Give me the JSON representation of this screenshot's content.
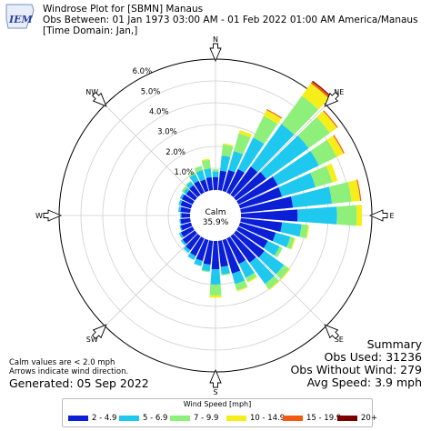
{
  "header": {
    "line1": "Windrose Plot for [SBMN] Manaus",
    "line2": "Obs Between: 01 Jan 1973 03:00 AM - 01 Feb 2022 01:00 AM America/Manaus",
    "line3": "[Time Domain: Jan,]",
    "logo_text": "IEM"
  },
  "notes": {
    "calm_note": "Calm values are < 2.0 mph",
    "arrow_note": "Arrows indicate wind direction.",
    "generated": "Generated: 05 Sep 2022"
  },
  "summary": {
    "title": "Summary",
    "obs_used": "Obs Used: 31236",
    "obs_without_wind": "Obs Without Wind: 279",
    "avg_speed": "Avg Speed: 3.9 mph"
  },
  "chart_data": {
    "type": "windrose",
    "title": "Windrose Plot for [SBMN] Manaus",
    "calm_label": "Calm",
    "calm_value": "35.9%",
    "radial_max": 6.0,
    "radial_ticks": [
      1.0,
      2.0,
      3.0,
      4.0,
      5.0,
      6.0
    ],
    "radial_tick_labels": [
      "1.0%",
      "2.0%",
      "3.0%",
      "4.0%",
      "5.0%",
      "6.0%"
    ],
    "direction_labels": [
      {
        "label": "N",
        "deg": 0
      },
      {
        "label": "NE",
        "deg": 45
      },
      {
        "label": "E",
        "deg": 90
      },
      {
        "label": "SE",
        "deg": 135
      },
      {
        "label": "S",
        "deg": 180
      },
      {
        "label": "SW",
        "deg": 225
      },
      {
        "label": "W",
        "deg": 270
      },
      {
        "label": "NW",
        "deg": 315
      }
    ],
    "legend_title": "Wind Speed [mph]",
    "bins": [
      {
        "label": "2 - 4.9",
        "color": "#0a1fd6"
      },
      {
        "label": "5 - 6.9",
        "color": "#1ec8ee"
      },
      {
        "label": "7 - 9.9",
        "color": "#8ef07a"
      },
      {
        "label": "10 - 14.9",
        "color": "#f6ee1a"
      },
      {
        "label": "15 - 19.9",
        "color": "#f05a12"
      },
      {
        "label": "20+",
        "color": "#7a0000"
      }
    ],
    "directions_deg": [
      0,
      10,
      20,
      30,
      40,
      50,
      60,
      70,
      80,
      90,
      100,
      110,
      120,
      130,
      140,
      150,
      160,
      170,
      180,
      190,
      200,
      210,
      220,
      230,
      240,
      250,
      260,
      270,
      280,
      290,
      300,
      310,
      320,
      330,
      340,
      350
    ],
    "values": [
      [
        0.6,
        0.25,
        0.1,
        0.0,
        0.0,
        0.0
      ],
      [
        0.9,
        0.7,
        0.5,
        0.05,
        0.0,
        0.0
      ],
      [
        1.0,
        0.9,
        0.85,
        0.15,
        0.0,
        0.0
      ],
      [
        1.2,
        1.6,
        1.1,
        0.3,
        0.05,
        0.0
      ],
      [
        1.6,
        2.4,
        1.6,
        0.7,
        0.1,
        0.05
      ],
      [
        1.7,
        2.4,
        1.2,
        0.4,
        0.05,
        0.0
      ],
      [
        2.0,
        2.1,
        0.9,
        0.35,
        0.05,
        0.0
      ],
      [
        2.0,
        1.6,
        0.8,
        0.25,
        0.0,
        0.0
      ],
      [
        2.4,
        1.8,
        0.9,
        0.4,
        0.05,
        0.0
      ],
      [
        2.6,
        1.8,
        0.9,
        0.25,
        0.0,
        0.0
      ],
      [
        1.9,
        0.9,
        0.3,
        0.05,
        0.0,
        0.0
      ],
      [
        1.7,
        0.7,
        0.2,
        0.05,
        0.0,
        0.0
      ],
      [
        1.5,
        0.6,
        0.15,
        0.0,
        0.0,
        0.0
      ],
      [
        1.6,
        1.1,
        0.3,
        0.05,
        0.0,
        0.0
      ],
      [
        1.5,
        1.2,
        0.3,
        0.05,
        0.0,
        0.0
      ],
      [
        1.3,
        0.7,
        0.2,
        0.05,
        0.0,
        0.0
      ],
      [
        1.6,
        0.5,
        0.3,
        0.05,
        0.0,
        0.0
      ],
      [
        1.2,
        0.35,
        0.05,
        0.0,
        0.0,
        0.0
      ],
      [
        1.3,
        0.7,
        0.5,
        0.1,
        0.0,
        0.0
      ],
      [
        1.1,
        0.3,
        0.05,
        0.0,
        0.0,
        0.0
      ],
      [
        1.0,
        0.25,
        0.0,
        0.0,
        0.0,
        0.0
      ],
      [
        0.9,
        0.2,
        0.0,
        0.0,
        0.0,
        0.0
      ],
      [
        0.8,
        0.15,
        0.0,
        0.0,
        0.0,
        0.0
      ],
      [
        0.7,
        0.1,
        0.0,
        0.0,
        0.0,
        0.0
      ],
      [
        0.6,
        0.1,
        0.0,
        0.0,
        0.0,
        0.0
      ],
      [
        0.5,
        0.05,
        0.0,
        0.0,
        0.0,
        0.0
      ],
      [
        0.45,
        0.05,
        0.0,
        0.0,
        0.0,
        0.0
      ],
      [
        0.4,
        0.05,
        0.0,
        0.0,
        0.0,
        0.0
      ],
      [
        0.45,
        0.1,
        0.0,
        0.0,
        0.0,
        0.0
      ],
      [
        0.5,
        0.1,
        0.0,
        0.0,
        0.0,
        0.0
      ],
      [
        0.55,
        0.1,
        0.0,
        0.0,
        0.0,
        0.0
      ],
      [
        0.5,
        0.15,
        0.1,
        0.0,
        0.0,
        0.0
      ],
      [
        0.55,
        0.2,
        0.05,
        0.0,
        0.0,
        0.0
      ],
      [
        0.6,
        0.35,
        0.1,
        0.0,
        0.0,
        0.0
      ],
      [
        0.55,
        0.45,
        0.2,
        0.0,
        0.0,
        0.0
      ],
      [
        0.6,
        0.4,
        0.4,
        0.05,
        0.0,
        0.0
      ]
    ]
  }
}
